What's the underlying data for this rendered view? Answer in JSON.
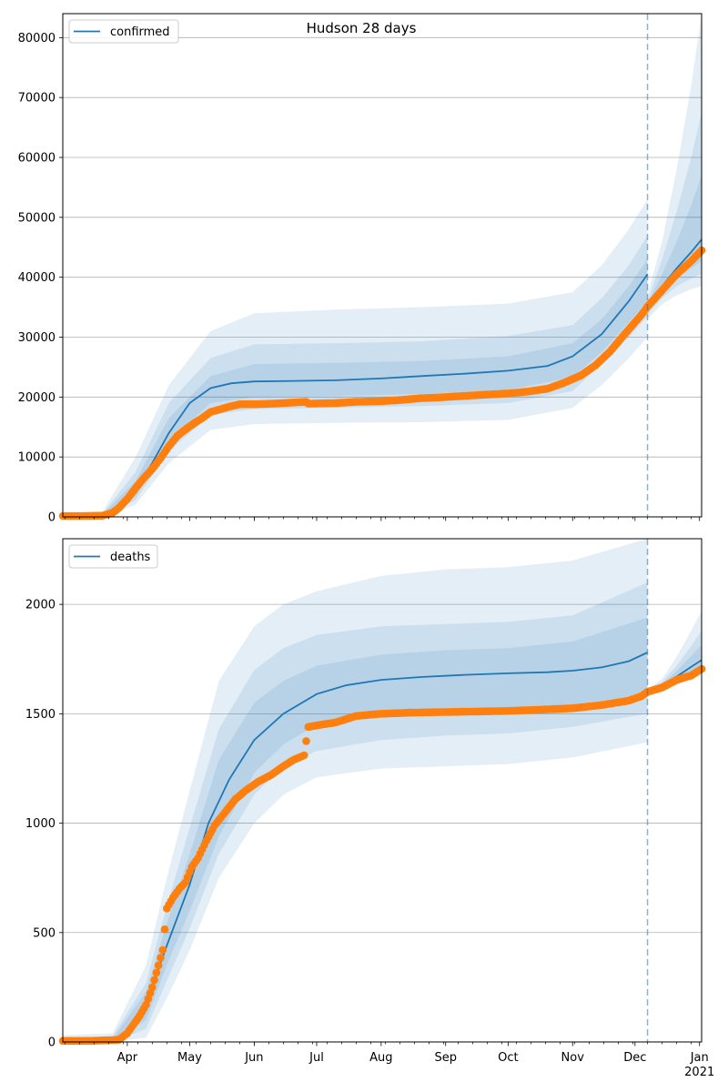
{
  "figure_title": "Hudson 28 days",
  "colors": {
    "model": "#1f77b4",
    "observed": "#ff7f0e",
    "band": "#1f77b4",
    "grid": "#b0b0b0",
    "forecast_line": "#1f77b4"
  },
  "x_axis": {
    "month_ticks": [
      {
        "date": "2020-04-01",
        "label": "Apr"
      },
      {
        "date": "2020-05-01",
        "label": "May"
      },
      {
        "date": "2020-06-01",
        "label": "Jun"
      },
      {
        "date": "2020-07-01",
        "label": "Jul"
      },
      {
        "date": "2020-08-01",
        "label": "Aug"
      },
      {
        "date": "2020-09-01",
        "label": "Sep"
      },
      {
        "date": "2020-10-01",
        "label": "Oct"
      },
      {
        "date": "2020-11-01",
        "label": "Nov"
      },
      {
        "date": "2020-12-01",
        "label": "Dec"
      },
      {
        "date": "2021-01-01",
        "label": "Jan"
      }
    ],
    "year_label": "2021",
    "xlim": [
      "2020-03-01",
      "2021-01-02"
    ],
    "forecast_start": "2020-12-07"
  },
  "chart_data": [
    {
      "type": "line",
      "legend": "confirmed",
      "legend_position": "top-left",
      "title": "Hudson 28 days",
      "ylim": [
        0,
        84000
      ],
      "yticks": [
        0,
        10000,
        20000,
        30000,
        40000,
        50000,
        60000,
        70000,
        80000
      ],
      "grid": true,
      "model": {
        "x": [
          "2020-03-01",
          "2020-03-20",
          "2020-03-28",
          "2020-04-05",
          "2020-04-13",
          "2020-04-21",
          "2020-05-01",
          "2020-05-11",
          "2020-05-21",
          "2020-06-01",
          "2020-06-20",
          "2020-07-10",
          "2020-08-01",
          "2020-08-20",
          "2020-09-10",
          "2020-10-01",
          "2020-10-20",
          "2020-11-01",
          "2020-11-15",
          "2020-11-28",
          "2020-12-07"
        ],
        "y": [
          0,
          200,
          1300,
          4500,
          9000,
          14000,
          19000,
          21500,
          22300,
          22600,
          22700,
          22800,
          23100,
          23500,
          23900,
          24400,
          25200,
          26800,
          30500,
          36000,
          40500
        ]
      },
      "forecast": {
        "x": [
          "2020-12-07",
          "2020-12-14",
          "2020-12-21",
          "2020-12-28",
          "2021-01-02"
        ],
        "y": [
          35000,
          38500,
          41500,
          44200,
          46300
        ]
      },
      "bands": [
        {
          "level": "outer",
          "x": [
            "2020-03-01",
            "2020-03-20",
            "2020-04-05",
            "2020-04-21",
            "2020-05-11",
            "2020-06-01",
            "2020-07-10",
            "2020-08-20",
            "2020-10-01",
            "2020-11-01",
            "2020-11-15",
            "2020-11-28",
            "2020-12-07"
          ],
          "lower": [
            0,
            0,
            2000,
            9000,
            14500,
            15500,
            15700,
            15800,
            16200,
            18200,
            22000,
            26500,
            30000
          ],
          "upper": [
            200,
            800,
            10000,
            22000,
            31000,
            34000,
            34600,
            35000,
            35600,
            37500,
            42000,
            48000,
            53000
          ]
        },
        {
          "level": "middle",
          "x": [
            "2020-03-01",
            "2020-03-20",
            "2020-04-05",
            "2020-04-21",
            "2020-05-11",
            "2020-06-01",
            "2020-07-10",
            "2020-08-20",
            "2020-10-01",
            "2020-11-01",
            "2020-11-15",
            "2020-11-28",
            "2020-12-07"
          ],
          "lower": [
            0,
            0,
            2800,
            11000,
            17000,
            18000,
            18200,
            18500,
            19000,
            21000,
            25500,
            30000,
            33500
          ],
          "upper": [
            100,
            500,
            7500,
            19000,
            26500,
            28800,
            29000,
            29300,
            30200,
            32000,
            36500,
            42000,
            47000
          ]
        },
        {
          "level": "inner",
          "x": [
            "2020-03-01",
            "2020-03-20",
            "2020-04-05",
            "2020-04-21",
            "2020-05-11",
            "2020-06-01",
            "2020-07-10",
            "2020-08-20",
            "2020-10-01",
            "2020-11-01",
            "2020-11-15",
            "2020-11-28",
            "2020-12-07"
          ],
          "lower": [
            0,
            0,
            3400,
            12500,
            19000,
            20000,
            20200,
            20500,
            21200,
            23300,
            27500,
            32500,
            36000
          ],
          "upper": [
            100,
            400,
            6000,
            16500,
            23500,
            25500,
            25700,
            26000,
            26800,
            29000,
            33000,
            38500,
            43000
          ]
        }
      ],
      "forecast_bands": [
        {
          "level": "outer",
          "x": [
            "2020-12-07",
            "2020-12-14",
            "2020-12-21",
            "2020-12-28",
            "2021-01-02"
          ],
          "lower": [
            33000,
            35500,
            37000,
            38000,
            38500
          ],
          "upper": [
            37000,
            46000,
            58000,
            72000,
            84000
          ]
        },
        {
          "level": "middle",
          "x": [
            "2020-12-07",
            "2020-12-14",
            "2020-12-21",
            "2020-12-28",
            "2021-01-02"
          ],
          "lower": [
            33800,
            36500,
            38500,
            39800,
            40500
          ],
          "upper": [
            36000,
            43000,
            51000,
            60000,
            67500
          ]
        },
        {
          "level": "inner",
          "x": [
            "2020-12-07",
            "2020-12-14",
            "2020-12-21",
            "2020-12-28",
            "2021-01-02"
          ],
          "lower": [
            34300,
            37300,
            39700,
            41500,
            42700
          ],
          "upper": [
            35500,
            40500,
            46000,
            52000,
            57000
          ]
        }
      ],
      "observed": {
        "x": [
          "2020-03-01",
          "2020-03-10",
          "2020-03-20",
          "2020-03-25",
          "2020-03-28",
          "2020-04-01",
          "2020-04-05",
          "2020-04-09",
          "2020-04-13",
          "2020-04-17",
          "2020-04-21",
          "2020-04-25",
          "2020-04-29",
          "2020-05-03",
          "2020-05-07",
          "2020-05-11",
          "2020-05-15",
          "2020-05-20",
          "2020-05-25",
          "2020-06-01",
          "2020-06-10",
          "2020-06-20",
          "2020-06-26",
          "2020-06-27",
          "2020-07-10",
          "2020-07-20",
          "2020-08-01",
          "2020-08-10",
          "2020-08-20",
          "2020-09-01",
          "2020-09-10",
          "2020-09-20",
          "2020-10-01",
          "2020-10-10",
          "2020-10-20",
          "2020-10-28",
          "2020-11-05",
          "2020-11-12",
          "2020-11-19",
          "2020-11-26",
          "2020-12-01",
          "2020-12-04",
          "2020-12-07",
          "2020-12-14",
          "2020-12-21",
          "2020-12-28",
          "2021-01-02"
        ],
        "y": [
          150,
          150,
          200,
          700,
          1500,
          3000,
          4800,
          6500,
          8000,
          9800,
          11800,
          13500,
          14600,
          15600,
          16500,
          17500,
          17900,
          18400,
          18800,
          18800,
          18900,
          19100,
          19200,
          18900,
          19000,
          19200,
          19300,
          19500,
          19800,
          20000,
          20200,
          20400,
          20600,
          20900,
          21400,
          22400,
          23600,
          25300,
          27600,
          30500,
          32500,
          33700,
          35100,
          37800,
          40500,
          42700,
          44500
        ]
      }
    },
    {
      "type": "line",
      "legend": "deaths",
      "legend_position": "top-left",
      "ylim": [
        0,
        2300
      ],
      "yticks": [
        0,
        500,
        1000,
        1500,
        2000
      ],
      "grid": true,
      "model": {
        "x": [
          "2020-03-01",
          "2020-03-25",
          "2020-04-01",
          "2020-04-10",
          "2020-04-20",
          "2020-05-01",
          "2020-05-10",
          "2020-05-20",
          "2020-06-01",
          "2020-06-15",
          "2020-07-01",
          "2020-07-15",
          "2020-08-01",
          "2020-08-20",
          "2020-09-10",
          "2020-10-01",
          "2020-10-20",
          "2020-11-01",
          "2020-11-15",
          "2020-11-28",
          "2020-12-07"
        ],
        "y": [
          0,
          5,
          40,
          180,
          440,
          720,
          1000,
          1200,
          1380,
          1500,
          1590,
          1630,
          1655,
          1668,
          1678,
          1685,
          1690,
          1697,
          1712,
          1740,
          1780
        ]
      },
      "forecast": {
        "x": [
          "2020-12-07",
          "2020-12-14",
          "2020-12-21",
          "2020-12-28",
          "2021-01-02"
        ],
        "y": [
          1605,
          1625,
          1670,
          1715,
          1745
        ]
      },
      "bands": [
        {
          "level": "outer",
          "x": [
            "2020-03-01",
            "2020-03-25",
            "2020-04-10",
            "2020-04-20",
            "2020-05-01",
            "2020-05-15",
            "2020-06-01",
            "2020-06-15",
            "2020-07-01",
            "2020-08-01",
            "2020-09-01",
            "2020-10-01",
            "2020-11-01",
            "2020-12-07"
          ],
          "lower": [
            0,
            0,
            20,
            200,
            420,
            750,
            1000,
            1130,
            1210,
            1250,
            1260,
            1270,
            1300,
            1370
          ],
          "upper": [
            30,
            40,
            350,
            750,
            1150,
            1650,
            1900,
            2000,
            2060,
            2130,
            2160,
            2170,
            2200,
            2300
          ]
        },
        {
          "level": "middle",
          "x": [
            "2020-03-01",
            "2020-03-25",
            "2020-04-10",
            "2020-04-20",
            "2020-05-01",
            "2020-05-15",
            "2020-06-01",
            "2020-06-15",
            "2020-07-01",
            "2020-08-01",
            "2020-09-01",
            "2020-10-01",
            "2020-11-01",
            "2020-12-07"
          ],
          "lower": [
            0,
            0,
            60,
            280,
            520,
            860,
            1130,
            1260,
            1330,
            1380,
            1400,
            1410,
            1440,
            1500
          ],
          "upper": [
            20,
            25,
            270,
            620,
            980,
            1430,
            1700,
            1800,
            1860,
            1900,
            1910,
            1920,
            1950,
            2100
          ]
        },
        {
          "level": "inner",
          "x": [
            "2020-03-01",
            "2020-03-25",
            "2020-04-10",
            "2020-04-20",
            "2020-05-01",
            "2020-05-15",
            "2020-06-01",
            "2020-06-15",
            "2020-07-01",
            "2020-08-01",
            "2020-09-01",
            "2020-10-01",
            "2020-11-01",
            "2020-12-07"
          ],
          "lower": [
            0,
            0,
            100,
            350,
            600,
            940,
            1230,
            1360,
            1450,
            1500,
            1510,
            1520,
            1540,
            1590
          ],
          "upper": [
            10,
            15,
            230,
            540,
            860,
            1290,
            1550,
            1650,
            1720,
            1770,
            1790,
            1800,
            1830,
            1940
          ]
        }
      ],
      "forecast_bands": [
        {
          "level": "outer",
          "x": [
            "2020-12-07",
            "2020-12-14",
            "2020-12-21",
            "2020-12-28",
            "2021-01-02"
          ],
          "lower": [
            1595,
            1610,
            1630,
            1665,
            1690
          ],
          "upper": [
            1615,
            1660,
            1760,
            1880,
            1970
          ]
        },
        {
          "level": "middle",
          "x": [
            "2020-12-07",
            "2020-12-14",
            "2020-12-21",
            "2020-12-28",
            "2021-01-02"
          ],
          "lower": [
            1598,
            1615,
            1645,
            1680,
            1705
          ],
          "upper": [
            1612,
            1645,
            1720,
            1810,
            1880
          ]
        },
        {
          "level": "inner",
          "x": [
            "2020-12-07",
            "2020-12-14",
            "2020-12-21",
            "2020-12-28",
            "2021-01-02"
          ],
          "lower": [
            1600,
            1620,
            1655,
            1695,
            1720
          ],
          "upper": [
            1610,
            1635,
            1695,
            1765,
            1815
          ]
        }
      ],
      "observed": {
        "x": [
          "2020-03-01",
          "2020-03-15",
          "2020-03-28",
          "2020-04-01",
          "2020-04-04",
          "2020-04-07",
          "2020-04-10",
          "2020-04-13",
          "2020-04-16",
          "2020-04-18",
          "2020-04-20",
          "2020-04-23",
          "2020-04-26",
          "2020-04-29",
          "2020-05-02",
          "2020-05-05",
          "2020-05-09",
          "2020-05-13",
          "2020-05-18",
          "2020-05-23",
          "2020-05-28",
          "2020-06-03",
          "2020-06-09",
          "2020-06-15",
          "2020-06-20",
          "2020-06-25",
          "2020-06-27",
          "2020-07-03",
          "2020-07-10",
          "2020-07-20",
          "2020-08-01",
          "2020-08-15",
          "2020-09-01",
          "2020-09-15",
          "2020-10-01",
          "2020-10-15",
          "2020-11-01",
          "2020-11-15",
          "2020-11-28",
          "2020-12-04",
          "2020-12-07",
          "2020-12-14",
          "2020-12-21",
          "2020-12-28",
          "2021-01-02"
        ],
        "y": [
          5,
          5,
          10,
          40,
          80,
          120,
          170,
          250,
          350,
          420,
          610,
          660,
          700,
          730,
          800,
          840,
          920,
          990,
          1050,
          1110,
          1150,
          1190,
          1220,
          1260,
          1290,
          1310,
          1440,
          1450,
          1460,
          1490,
          1500,
          1505,
          1508,
          1510,
          1513,
          1518,
          1525,
          1540,
          1560,
          1580,
          1600,
          1620,
          1655,
          1675,
          1705
        ]
      }
    }
  ]
}
